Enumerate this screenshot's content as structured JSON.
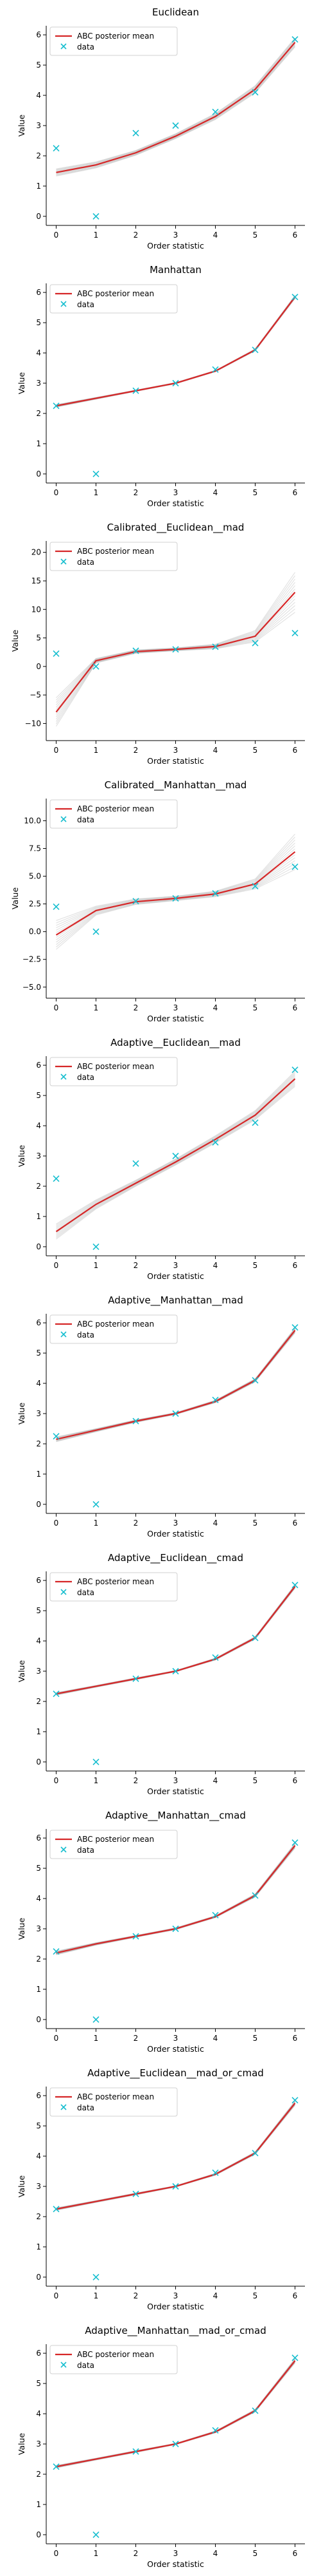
{
  "chart_data": [
    {
      "type": "line",
      "title": "Euclidean",
      "xlabel": "Order statistic",
      "ylabel": "Value",
      "x": [
        0,
        1,
        2,
        3,
        4,
        5,
        6
      ],
      "xlim": [
        -0.25,
        6.25
      ],
      "ylim": [
        -0.3,
        6.3
      ],
      "yticks": [
        0,
        1,
        2,
        3,
        4,
        5,
        6
      ],
      "ytick_labels": [
        "0",
        "1",
        "2",
        "3",
        "4",
        "5",
        "6"
      ],
      "series": [
        {
          "name": "ABC posterior mean",
          "values": [
            1.45,
            1.7,
            2.1,
            2.65,
            3.3,
            4.2,
            5.75
          ],
          "band": [
            0.12,
            0.1,
            0.08,
            0.08,
            0.1,
            0.12,
            0.15
          ]
        },
        {
          "name": "data",
          "values": [
            2.25,
            0.0,
            2.75,
            3.0,
            3.45,
            4.1,
            5.85
          ]
        }
      ],
      "legend": "upper left"
    },
    {
      "type": "line",
      "title": "Manhattan",
      "xlabel": "Order statistic",
      "ylabel": "Value",
      "x": [
        0,
        1,
        2,
        3,
        4,
        5,
        6
      ],
      "xlim": [
        -0.25,
        6.25
      ],
      "ylim": [
        -0.3,
        6.3
      ],
      "yticks": [
        0,
        1,
        2,
        3,
        4,
        5,
        6
      ],
      "ytick_labels": [
        "0",
        "1",
        "2",
        "3",
        "4",
        "5",
        "6"
      ],
      "series": [
        {
          "name": "ABC posterior mean",
          "values": [
            2.25,
            2.5,
            2.75,
            3.0,
            3.4,
            4.1,
            5.85
          ],
          "band": [
            0.04,
            0.03,
            0.02,
            0.02,
            0.02,
            0.03,
            0.05
          ]
        },
        {
          "name": "data",
          "values": [
            2.25,
            0.0,
            2.75,
            3.0,
            3.45,
            4.1,
            5.85
          ]
        }
      ],
      "legend": "upper left"
    },
    {
      "type": "line",
      "title": "Calibrated__Euclidean__mad",
      "xlabel": "Order statistic",
      "ylabel": "Value",
      "x": [
        0,
        1,
        2,
        3,
        4,
        5,
        6
      ],
      "xlim": [
        -0.25,
        6.25
      ],
      "ylim": [
        -13,
        22
      ],
      "yticks": [
        -10,
        -5,
        0,
        5,
        10,
        15,
        20
      ],
      "ytick_labels": [
        "−10",
        "−5",
        "0",
        "5",
        "10",
        "15",
        "20"
      ],
      "series": [
        {
          "name": "ABC posterior mean",
          "values": [
            -8.0,
            1.0,
            2.6,
            3.0,
            3.5,
            5.3,
            13.0
          ],
          "band": [
            2.5,
            0.4,
            0.3,
            0.25,
            0.4,
            1.0,
            3.5
          ]
        },
        {
          "name": "data",
          "values": [
            2.25,
            0.0,
            2.75,
            3.0,
            3.45,
            4.1,
            5.85
          ]
        }
      ],
      "legend": "upper left"
    },
    {
      "type": "line",
      "title": "Calibrated__Manhattan__mad",
      "xlabel": "Order statistic",
      "ylabel": "Value",
      "x": [
        0,
        1,
        2,
        3,
        4,
        5,
        6
      ],
      "xlim": [
        -0.25,
        6.25
      ],
      "ylim": [
        -6,
        12
      ],
      "yticks": [
        -5.0,
        -2.5,
        0.0,
        2.5,
        5.0,
        7.5,
        10.0
      ],
      "ytick_labels": [
        "−5.0",
        "−2.5",
        "0.0",
        "2.5",
        "5.0",
        "7.5",
        "10.0"
      ],
      "series": [
        {
          "name": "ABC posterior mean",
          "values": [
            -0.3,
            1.9,
            2.7,
            3.0,
            3.4,
            4.3,
            7.2
          ],
          "band": [
            1.3,
            0.4,
            0.25,
            0.2,
            0.25,
            0.45,
            1.6
          ]
        },
        {
          "name": "data",
          "values": [
            2.25,
            0.0,
            2.75,
            3.0,
            3.45,
            4.1,
            5.85
          ]
        }
      ],
      "legend": "upper left"
    },
    {
      "type": "line",
      "title": "Adaptive__Euclidean__mad",
      "xlabel": "Order statistic",
      "ylabel": "Value",
      "x": [
        0,
        1,
        2,
        3,
        4,
        5,
        6
      ],
      "xlim": [
        -0.25,
        6.25
      ],
      "ylim": [
        -0.3,
        6.3
      ],
      "yticks": [
        0,
        1,
        2,
        3,
        4,
        5,
        6
      ],
      "ytick_labels": [
        "0",
        "1",
        "2",
        "3",
        "4",
        "5",
        "6"
      ],
      "series": [
        {
          "name": "ABC posterior mean",
          "values": [
            0.5,
            1.4,
            2.1,
            2.8,
            3.55,
            4.35,
            5.55
          ],
          "band": [
            0.25,
            0.15,
            0.1,
            0.1,
            0.12,
            0.15,
            0.25
          ]
        },
        {
          "name": "data",
          "values": [
            2.25,
            0.0,
            2.75,
            3.0,
            3.45,
            4.1,
            5.85
          ]
        }
      ],
      "legend": "upper left"
    },
    {
      "type": "line",
      "title": "Adaptive__Manhattan__mad",
      "xlabel": "Order statistic",
      "ylabel": "Value",
      "x": [
        0,
        1,
        2,
        3,
        4,
        5,
        6
      ],
      "xlim": [
        -0.25,
        6.25
      ],
      "ylim": [
        -0.3,
        6.3
      ],
      "yticks": [
        0,
        1,
        2,
        3,
        4,
        5,
        6
      ],
      "ytick_labels": [
        "0",
        "1",
        "2",
        "3",
        "4",
        "5",
        "6"
      ],
      "series": [
        {
          "name": "ABC posterior mean",
          "values": [
            2.15,
            2.45,
            2.75,
            3.0,
            3.4,
            4.1,
            5.75
          ],
          "band": [
            0.08,
            0.05,
            0.04,
            0.03,
            0.04,
            0.05,
            0.08
          ]
        },
        {
          "name": "data",
          "values": [
            2.25,
            0.0,
            2.75,
            3.0,
            3.45,
            4.1,
            5.85
          ]
        }
      ],
      "legend": "upper left"
    },
    {
      "type": "line",
      "title": "Adaptive__Euclidean__cmad",
      "xlabel": "Order statistic",
      "ylabel": "Value",
      "x": [
        0,
        1,
        2,
        3,
        4,
        5,
        6
      ],
      "xlim": [
        -0.25,
        6.25
      ],
      "ylim": [
        -0.3,
        6.3
      ],
      "yticks": [
        0,
        1,
        2,
        3,
        4,
        5,
        6
      ],
      "ytick_labels": [
        "0",
        "1",
        "2",
        "3",
        "4",
        "5",
        "6"
      ],
      "series": [
        {
          "name": "ABC posterior mean",
          "values": [
            2.25,
            2.5,
            2.75,
            3.0,
            3.4,
            4.1,
            5.8
          ],
          "band": [
            0.04,
            0.03,
            0.03,
            0.02,
            0.03,
            0.04,
            0.06
          ]
        },
        {
          "name": "data",
          "values": [
            2.25,
            0.0,
            2.75,
            3.0,
            3.45,
            4.1,
            5.85
          ]
        }
      ],
      "legend": "upper left"
    },
    {
      "type": "line",
      "title": "Adaptive__Manhattan__cmad",
      "xlabel": "Order statistic",
      "ylabel": "Value",
      "x": [
        0,
        1,
        2,
        3,
        4,
        5,
        6
      ],
      "xlim": [
        -0.25,
        6.25
      ],
      "ylim": [
        -0.3,
        6.3
      ],
      "yticks": [
        0,
        1,
        2,
        3,
        4,
        5,
        6
      ],
      "ytick_labels": [
        "0",
        "1",
        "2",
        "3",
        "4",
        "5",
        "6"
      ],
      "series": [
        {
          "name": "ABC posterior mean",
          "values": [
            2.2,
            2.5,
            2.75,
            3.0,
            3.4,
            4.1,
            5.75
          ],
          "band": [
            0.06,
            0.04,
            0.03,
            0.03,
            0.03,
            0.05,
            0.08
          ]
        },
        {
          "name": "data",
          "values": [
            2.25,
            0.0,
            2.75,
            3.0,
            3.45,
            4.1,
            5.85
          ]
        }
      ],
      "legend": "upper left"
    },
    {
      "type": "line",
      "title": "Adaptive__Euclidean__mad_or_cmad",
      "xlabel": "Order statistic",
      "ylabel": "Value",
      "x": [
        0,
        1,
        2,
        3,
        4,
        5,
        6
      ],
      "xlim": [
        -0.25,
        6.25
      ],
      "ylim": [
        -0.3,
        6.3
      ],
      "yticks": [
        0,
        1,
        2,
        3,
        4,
        5,
        6
      ],
      "ytick_labels": [
        "0",
        "1",
        "2",
        "3",
        "4",
        "5",
        "6"
      ],
      "series": [
        {
          "name": "ABC posterior mean",
          "values": [
            2.25,
            2.5,
            2.75,
            3.0,
            3.4,
            4.1,
            5.75
          ],
          "band": [
            0.04,
            0.03,
            0.03,
            0.02,
            0.03,
            0.04,
            0.07
          ]
        },
        {
          "name": "data",
          "values": [
            2.25,
            0.0,
            2.75,
            3.0,
            3.45,
            4.1,
            5.85
          ]
        }
      ],
      "legend": "upper left"
    },
    {
      "type": "line",
      "title": "Adaptive__Manhattan__mad_or_cmad",
      "xlabel": "Order statistic",
      "ylabel": "Value",
      "x": [
        0,
        1,
        2,
        3,
        4,
        5,
        6
      ],
      "xlim": [
        -0.25,
        6.25
      ],
      "ylim": [
        -0.3,
        6.3
      ],
      "yticks": [
        0,
        1,
        2,
        3,
        4,
        5,
        6
      ],
      "ytick_labels": [
        "0",
        "1",
        "2",
        "3",
        "4",
        "5",
        "6"
      ],
      "series": [
        {
          "name": "ABC posterior mean",
          "values": [
            2.25,
            2.5,
            2.75,
            3.0,
            3.4,
            4.1,
            5.75
          ],
          "band": [
            0.04,
            0.03,
            0.03,
            0.02,
            0.03,
            0.04,
            0.07
          ]
        },
        {
          "name": "data",
          "values": [
            2.25,
            0.0,
            2.75,
            3.0,
            3.45,
            4.1,
            5.85
          ]
        }
      ],
      "legend": "upper left"
    }
  ],
  "colors": {
    "posterior_line": "#d62728",
    "posterior_band": "#808080",
    "data_marker": "#17becf",
    "axis": "#000000"
  }
}
